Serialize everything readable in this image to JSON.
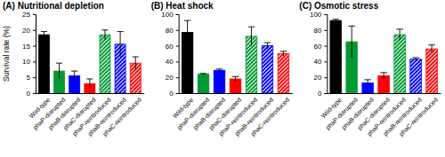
{
  "chart_data": [
    {
      "type": "bar",
      "title": "(A) Nutritional depletion",
      "y_label": "Survival rate (%)",
      "categories": [
        "Wild-type",
        "phaP-disrupted",
        "phaB-disrupted",
        "phaC-disrupted",
        "phaP-reintroduced",
        "phaB-reintroduced",
        "phaC-reintroduced"
      ],
      "values": [
        18.5,
        7,
        5.5,
        3,
        18.5,
        15.5,
        9.5
      ],
      "errors": [
        1,
        2.5,
        1.5,
        1.5,
        1.5,
        4,
        2
      ],
      "colors": [
        "#000000",
        "#009933",
        "#0000ff",
        "#ff0000",
        "#009933",
        "#0000ff",
        "#ff0000"
      ],
      "ylim": [
        0,
        25
      ],
      "yticks": [
        0,
        5,
        10,
        15,
        20,
        25
      ]
    },
    {
      "type": "bar",
      "title": "(B) Heat shock",
      "categories": [
        "Wild-type",
        "phaP-disrupted",
        "phaB-disrupted",
        "phaC-disrupted",
        "phaP-reintroduced",
        "phaB-reintroduced",
        "phaC-reintroduced"
      ],
      "values": [
        77,
        24,
        29,
        18,
        72,
        60,
        50
      ],
      "errors": [
        15,
        1,
        1.5,
        3,
        12,
        4,
        3
      ],
      "colors": [
        "#000000",
        "#009933",
        "#0000ff",
        "#ff0000",
        "#009933",
        "#0000ff",
        "#ff0000"
      ],
      "ylim": [
        0,
        100
      ],
      "yticks": [
        0,
        20,
        40,
        60,
        80,
        100
      ]
    },
    {
      "type": "bar",
      "title": "(C) Osmotic stress",
      "categories": [
        "Wild-type",
        "phaP-disrupted",
        "phaB-disrupted",
        "phaC-disrupted",
        "phaP-reintroduced",
        "phaB-reintroduced",
        "phaC-reintroduced"
      ],
      "values": [
        92,
        65,
        13,
        22,
        74,
        43,
        56
      ],
      "errors": [
        1.5,
        20,
        4,
        4,
        7,
        2,
        5
      ],
      "colors": [
        "#000000",
        "#009933",
        "#0000ff",
        "#ff0000",
        "#009933",
        "#0000ff",
        "#ff0000"
      ],
      "ylim": [
        0,
        100
      ],
      "yticks": [
        0,
        20,
        40,
        60,
        80,
        100
      ]
    }
  ]
}
